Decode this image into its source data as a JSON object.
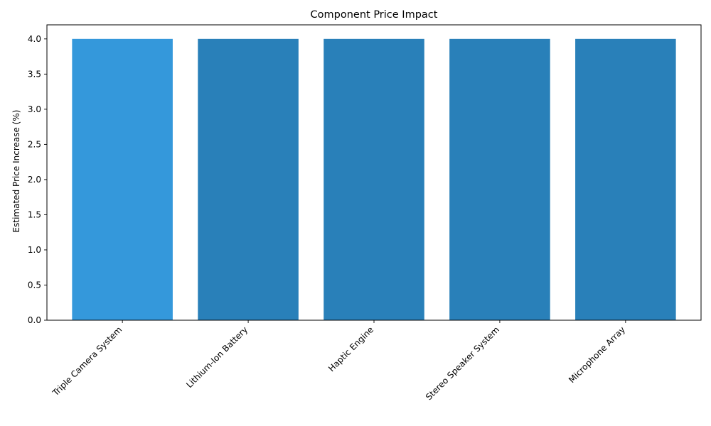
{
  "chart_data": {
    "type": "bar",
    "title": "Component Price Impact",
    "xlabel": "",
    "ylabel": "Estimated Price Increase (%)",
    "categories": [
      "Triple Camera System",
      "Lithium-Ion Battery",
      "Haptic Engine",
      "Stereo Speaker System",
      "Microphone Array"
    ],
    "values": [
      4.0,
      4.0,
      4.0,
      4.0,
      4.0
    ],
    "bar_colors": [
      "#3498db",
      "#2980b9",
      "#2980b9",
      "#2980b9",
      "#2980b9"
    ],
    "ylim": [
      0,
      4.2
    ],
    "yticks": [
      0.0,
      0.5,
      1.0,
      1.5,
      2.0,
      2.5,
      3.0,
      3.5,
      4.0
    ],
    "ytick_labels": [
      "0.0",
      "0.5",
      "1.0",
      "1.5",
      "2.0",
      "2.5",
      "3.0",
      "3.5",
      "4.0"
    ],
    "grid": false,
    "legend": null
  }
}
